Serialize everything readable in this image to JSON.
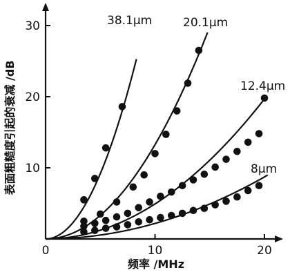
{
  "chart_data": {
    "type": "scatter",
    "title": "",
    "xlabel": "频率 /MHz",
    "ylabel": "表面粗糙度引起的衰减 /dB",
    "xlim": [
      0,
      22
    ],
    "ylim": [
      0,
      32
    ],
    "xticks": [
      0,
      10,
      20
    ],
    "yticks": [
      10,
      20,
      30
    ],
    "grid": false,
    "series": [
      {
        "name": "38.1μm",
        "curve_coeff": 0.367,
        "curve_xmax": 8.3,
        "points": [
          [
            3.5,
            5.5
          ],
          [
            4.5,
            8.5
          ],
          [
            5.5,
            12.8
          ],
          [
            7.0,
            18.6
          ]
        ]
      },
      {
        "name": "20.1μm",
        "curve_coeff": 0.1325,
        "curve_xmax": 14.8,
        "points": [
          [
            3.5,
            2.5
          ],
          [
            5.0,
            3.5
          ],
          [
            6.5,
            5.2
          ],
          [
            8.0,
            7.3
          ],
          [
            9.0,
            9.0
          ],
          [
            10.0,
            12.0
          ],
          [
            11.0,
            14.7
          ],
          [
            12.0,
            18.0
          ],
          [
            13.0,
            21.9
          ],
          [
            14.0,
            26.5
          ]
        ]
      },
      {
        "name": "12.4μm",
        "curve_coeff": 0.0492,
        "curve_xmax": 20.2,
        "points": [
          [
            3.5,
            1.8
          ],
          [
            4.5,
            2.2
          ],
          [
            5.5,
            2.6
          ],
          [
            6.5,
            3.1
          ],
          [
            7.5,
            3.6
          ],
          [
            8.5,
            4.4
          ],
          [
            9.5,
            5.2
          ],
          [
            10.5,
            6.0
          ],
          [
            11.5,
            6.6
          ],
          [
            12.5,
            7.5
          ],
          [
            13.5,
            8.3
          ],
          [
            14.5,
            9.1
          ],
          [
            15.5,
            10.1
          ],
          [
            16.5,
            11.2
          ],
          [
            17.5,
            12.3
          ],
          [
            18.5,
            13.6
          ],
          [
            19.5,
            14.8
          ],
          [
            20.0,
            19.8
          ]
        ]
      },
      {
        "name": "8μm",
        "curve_coeff": 0.0218,
        "curve_xmax": 20.3,
        "points": [
          [
            3.5,
            1.0
          ],
          [
            4.5,
            1.2
          ],
          [
            5.5,
            1.5
          ],
          [
            6.5,
            1.7
          ],
          [
            7.5,
            2.0
          ],
          [
            8.5,
            2.4
          ],
          [
            9.5,
            2.7
          ],
          [
            10.5,
            3.0
          ],
          [
            11.5,
            3.3
          ],
          [
            12.5,
            3.6
          ],
          [
            13.5,
            4.0
          ],
          [
            14.5,
            4.3
          ],
          [
            15.5,
            4.8
          ],
          [
            16.5,
            5.3
          ],
          [
            17.5,
            5.9
          ],
          [
            18.5,
            6.8
          ],
          [
            19.5,
            7.5
          ]
        ]
      }
    ]
  }
}
